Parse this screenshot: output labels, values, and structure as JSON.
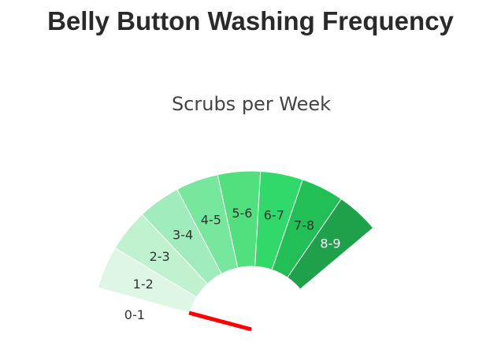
{
  "chart_data": {
    "type": "gauge",
    "title": "Belly Button Washing Frequency",
    "subtitle": "Scrubs per Week",
    "range": [
      0,
      9
    ],
    "value": 1,
    "needle_color": "#ff0000",
    "segments": [
      {
        "label": "0-1",
        "from": 0,
        "to": 1,
        "color": "#ffffff",
        "text_color": "#333333"
      },
      {
        "label": "1-2",
        "from": 1,
        "to": 2,
        "color": "#ddf7e4",
        "text_color": "#333333"
      },
      {
        "label": "2-3",
        "from": 2,
        "to": 3,
        "color": "#c0f2d0",
        "text_color": "#333333"
      },
      {
        "label": "3-4",
        "from": 3,
        "to": 4,
        "color": "#a0ecbc",
        "text_color": "#333333"
      },
      {
        "label": "4-5",
        "from": 4,
        "to": 5,
        "color": "#76e79c",
        "text_color": "#333333"
      },
      {
        "label": "5-6",
        "from": 5,
        "to": 6,
        "color": "#52e07e",
        "text_color": "#333333"
      },
      {
        "label": "6-7",
        "from": 6,
        "to": 7,
        "color": "#31d96a",
        "text_color": "#333333"
      },
      {
        "label": "7-8",
        "from": 7,
        "to": 8,
        "color": "#22bf56",
        "text_color": "#333333"
      },
      {
        "label": "8-9",
        "from": 8,
        "to": 9,
        "color": "#1ea14a",
        "text_color": "#ffffff"
      }
    ]
  }
}
